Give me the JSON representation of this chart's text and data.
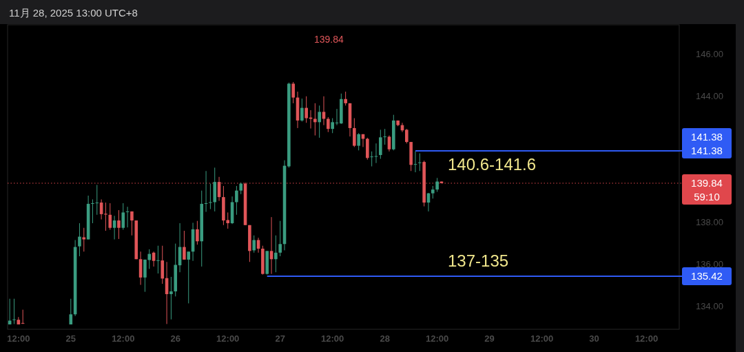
{
  "chart_data": {
    "type": "candlestick",
    "title": "11月 28, 2025 13:00 UTC+8",
    "x": [
      "2025-11-24T10:00",
      "2025-11-24T11:00",
      "2025-11-24T12:00",
      "2025-11-24T13:00",
      "2025-11-25T00:00",
      "2025-11-25T01:00",
      "2025-11-25T02:00",
      "2025-11-25T03:00",
      "2025-11-25T04:00",
      "2025-11-25T05:00",
      "2025-11-25T06:00",
      "2025-11-25T07:00",
      "2025-11-25T08:00",
      "2025-11-25T09:00",
      "2025-11-25T10:00",
      "2025-11-25T11:00",
      "2025-11-25T12:00",
      "2025-11-25T13:00",
      "2025-11-25T14:00",
      "2025-11-25T15:00",
      "2025-11-25T16:00",
      "2025-11-25T17:00",
      "2025-11-25T18:00",
      "2025-11-25T19:00",
      "2025-11-25T20:00",
      "2025-11-25T21:00",
      "2025-11-25T22:00",
      "2025-11-25T23:00",
      "2025-11-26T00:00",
      "2025-11-26T01:00",
      "2025-11-26T02:00",
      "2025-11-26T03:00",
      "2025-11-26T04:00",
      "2025-11-26T05:00",
      "2025-11-26T06:00",
      "2025-11-26T07:00",
      "2025-11-26T08:00",
      "2025-11-26T09:00",
      "2025-11-26T10:00",
      "2025-11-26T11:00",
      "2025-11-26T12:00",
      "2025-11-26T13:00",
      "2025-11-26T14:00",
      "2025-11-26T15:00",
      "2025-11-26T16:00",
      "2025-11-26T17:00",
      "2025-11-26T18:00",
      "2025-11-26T19:00",
      "2025-11-26T20:00",
      "2025-11-26T21:00",
      "2025-11-26T22:00",
      "2025-11-26T23:00",
      "2025-11-27T00:00",
      "2025-11-27T01:00",
      "2025-11-27T02:00",
      "2025-11-27T03:00",
      "2025-11-27T04:00",
      "2025-11-27T05:00",
      "2025-11-27T06:00",
      "2025-11-27T07:00",
      "2025-11-27T08:00",
      "2025-11-27T09:00",
      "2025-11-27T10:00",
      "2025-11-27T11:00",
      "2025-11-27T12:00",
      "2025-11-27T13:00",
      "2025-11-27T14:00",
      "2025-11-27T15:00",
      "2025-11-27T16:00",
      "2025-11-27T17:00",
      "2025-11-27T18:00",
      "2025-11-27T19:00",
      "2025-11-27T20:00",
      "2025-11-27T21:00",
      "2025-11-27T22:00",
      "2025-11-27T23:00",
      "2025-11-28T00:00",
      "2025-11-28T01:00",
      "2025-11-28T02:00",
      "2025-11-28T03:00",
      "2025-11-28T04:00",
      "2025-11-28T05:00",
      "2025-11-28T06:00",
      "2025-11-28T07:00",
      "2025-11-28T08:00",
      "2025-11-28T09:00",
      "2025-11-28T10:00",
      "2025-11-28T11:00",
      "2025-11-28T12:00",
      "2025-11-28T13:00"
    ],
    "ohlc": [
      [
        133.13,
        134.35,
        133.13,
        133.31
      ],
      [
        133.37,
        134.35,
        133.15,
        133.37
      ],
      [
        133.35,
        133.48,
        133.13,
        133.13
      ],
      [
        133.2,
        133.83,
        133.15,
        133.17
      ],
      [
        133.13,
        134.35,
        133.13,
        133.61
      ],
      [
        133.61,
        137.14,
        133.53,
        136.81
      ],
      [
        136.84,
        137.94,
        136.37,
        137.3
      ],
      [
        137.27,
        137.72,
        136.59,
        137.17
      ],
      [
        137.17,
        139.25,
        137.17,
        138.86
      ],
      [
        138.88,
        139.07,
        137.94,
        138.89
      ],
      [
        138.91,
        139.76,
        138.34,
        138.92
      ],
      [
        138.92,
        139.07,
        138.12,
        138.37
      ],
      [
        138.39,
        138.92,
        137.58,
        138.35
      ],
      [
        138.34,
        138.89,
        137.63,
        137.72
      ],
      [
        137.72,
        138.29,
        137.17,
        138.07
      ],
      [
        138.07,
        138.56,
        137.19,
        137.72
      ],
      [
        137.72,
        138.89,
        137.63,
        138.45
      ],
      [
        138.48,
        138.72,
        137.74,
        138.5
      ],
      [
        138.5,
        138.5,
        137.36,
        138.07
      ],
      [
        138.07,
        138.07,
        136.23,
        136.23
      ],
      [
        136.23,
        136.59,
        135.01,
        135.36
      ],
      [
        135.36,
        136.21,
        134.68,
        136.21
      ],
      [
        136.19,
        136.7,
        135.77,
        136.48
      ],
      [
        136.54,
        136.59,
        135.88,
        136.15
      ],
      [
        136.17,
        136.87,
        135.55,
        136.18
      ],
      [
        136.17,
        136.87,
        135.06,
        135.31
      ],
      [
        135.33,
        136.1,
        133.15,
        134.57
      ],
      [
        134.57,
        135.39,
        133.37,
        134.7
      ],
      [
        134.7,
        136.97,
        134.46,
        135.96
      ],
      [
        135.94,
        137.94,
        135.61,
        136.81
      ],
      [
        136.81,
        137.58,
        136.21,
        136.21
      ],
      [
        136.21,
        136.59,
        134.13,
        136.59
      ],
      [
        136.59,
        137.96,
        136.15,
        137.65
      ],
      [
        137.65,
        138.05,
        136.92,
        137.08
      ],
      [
        137.08,
        139.49,
        135.88,
        138.86
      ],
      [
        138.88,
        140.42,
        138.48,
        138.89
      ],
      [
        138.93,
        139.82,
        138.61,
        138.94
      ],
      [
        138.94,
        140.58,
        138.5,
        139.9
      ],
      [
        139.9,
        140.14,
        139.0,
        139.18
      ],
      [
        139.18,
        139.71,
        137.85,
        138.07
      ],
      [
        138.09,
        138.45,
        137.68,
        137.94
      ],
      [
        137.94,
        139.21,
        137.9,
        138.94
      ],
      [
        138.94,
        139.71,
        138.34,
        139.49
      ],
      [
        139.49,
        139.87,
        139.32,
        139.82
      ],
      [
        139.82,
        139.87,
        137.85,
        137.85
      ],
      [
        137.85,
        137.85,
        136.1,
        136.62
      ],
      [
        136.65,
        137.36,
        136.54,
        137.14
      ],
      [
        137.14,
        137.25,
        136.54,
        136.73
      ],
      [
        136.73,
        136.87,
        135.5,
        135.53
      ],
      [
        135.53,
        136.62,
        135.5,
        136.62
      ],
      [
        136.62,
        138.23,
        135.53,
        136.23
      ],
      [
        136.23,
        137.36,
        135.61,
        136.54
      ],
      [
        136.54,
        138.05,
        136.37,
        136.95
      ],
      [
        136.95,
        140.93,
        136.65,
        140.67
      ],
      [
        140.64,
        144.62,
        140.58,
        144.57
      ],
      [
        144.57,
        144.65,
        143.64,
        143.91
      ],
      [
        143.91,
        144.19,
        142.46,
        142.82
      ],
      [
        142.82,
        143.86,
        142.77,
        143.42
      ],
      [
        143.42,
        143.97,
        142.71,
        142.93
      ],
      [
        142.96,
        143.31,
        142.44,
        142.9
      ],
      [
        142.9,
        143.64,
        142.11,
        142.74
      ],
      [
        142.74,
        143.53,
        142.0,
        143.23
      ],
      [
        143.23,
        143.97,
        142.6,
        142.9
      ],
      [
        142.9,
        142.98,
        142.27,
        142.42
      ],
      [
        142.42,
        142.93,
        142.22,
        142.74
      ],
      [
        142.7,
        143.37,
        142.6,
        142.72
      ],
      [
        142.68,
        144.1,
        142.66,
        143.84
      ],
      [
        143.84,
        144.19,
        143.53,
        143.64
      ],
      [
        143.64,
        143.64,
        142.06,
        142.46
      ],
      [
        142.46,
        142.93,
        141.56,
        141.62
      ],
      [
        141.62,
        142.22,
        141.4,
        142.17
      ],
      [
        142.17,
        142.17,
        141.56,
        141.95
      ],
      [
        141.95,
        142.0,
        140.96,
        141.04
      ],
      [
        141.1,
        141.35,
        140.64,
        141.11
      ],
      [
        141.12,
        141.73,
        140.8,
        141.13
      ],
      [
        141.18,
        142.38,
        141.0,
        142.02
      ],
      [
        142.05,
        142.42,
        141.67,
        142.06
      ],
      [
        142.05,
        142.11,
        141.35,
        141.45
      ],
      [
        141.45,
        143.09,
        141.4,
        142.82
      ],
      [
        142.82,
        142.82,
        142.55,
        142.6
      ],
      [
        142.6,
        142.71,
        142.27,
        142.35
      ],
      [
        142.38,
        142.42,
        141.73,
        141.8
      ],
      [
        141.8,
        141.8,
        140.42,
        140.71
      ],
      [
        140.74,
        141.35,
        140.36,
        140.75
      ],
      [
        140.82,
        141.26,
        140.42,
        140.83
      ],
      [
        140.85,
        140.91,
        138.74,
        138.92
      ],
      [
        138.92,
        139.38,
        138.5,
        139.36
      ],
      [
        139.36,
        139.71,
        139.11,
        139.54
      ],
      [
        139.54,
        140.09,
        139.43,
        139.92
      ],
      [
        139.92,
        139.92,
        139.84,
        139.84
      ]
    ],
    "series": [
      {
        "type": "line",
        "name": "141.38",
        "color": "#2f5bf5",
        "x": [
          "2025-11-28T07:00",
          "2025-11-30T19:30"
        ],
        "values": [
          141.38,
          141.38
        ]
      },
      {
        "type": "line",
        "name": "135.42",
        "color": "#2f5bf5",
        "x": [
          "2025-11-26T21:00",
          "2025-11-30T19:30"
        ],
        "values": [
          135.42,
          135.42
        ]
      }
    ],
    "legend": "right",
    "ref_lines": [
      {
        "axis": "y",
        "value": 139.84,
        "label": "139.84",
        "color": "#e0474c",
        "line_style": "dotted"
      }
    ],
    "annotations": [
      "140.6-141.6",
      "137-135",
      "141.38",
      "59:10",
      "139.84"
    ],
    "xlim": [
      "2025-11-24T09:30",
      "2025-11-30T19:30"
    ],
    "xticks": [
      {
        "value": "2025-11-24T12:00",
        "label": "12:00"
      },
      {
        "value": "2025-11-25",
        "label": "25"
      },
      {
        "value": "2025-11-25T12:00",
        "label": "12:00"
      },
      {
        "value": "2025-11-26",
        "label": "26"
      },
      {
        "value": "2025-11-26T12:00",
        "label": "12:00"
      },
      {
        "value": "2025-11-27",
        "label": "27"
      },
      {
        "value": "2025-11-27T12:00",
        "label": "12:00"
      },
      {
        "value": "2025-11-28",
        "label": "28"
      },
      {
        "value": "2025-11-28T12:00",
        "label": "12:00"
      },
      {
        "value": "2025-11-29",
        "label": "29"
      },
      {
        "value": "2025-11-29T12:00",
        "label": "12:00"
      },
      {
        "value": "2025-11-30",
        "label": "30"
      },
      {
        "value": "2025-11-30T12:00",
        "label": "12:00"
      }
    ],
    "ylim": [
      132.9,
      147.4
    ],
    "yticks": [
      {
        "value": 134,
        "label": "134.00"
      },
      {
        "value": 136,
        "label": "136.00"
      },
      {
        "value": 138,
        "label": "138.00"
      },
      {
        "value": 144,
        "label": "144.00"
      },
      {
        "value": 146,
        "label": "146.00"
      }
    ]
  }
}
